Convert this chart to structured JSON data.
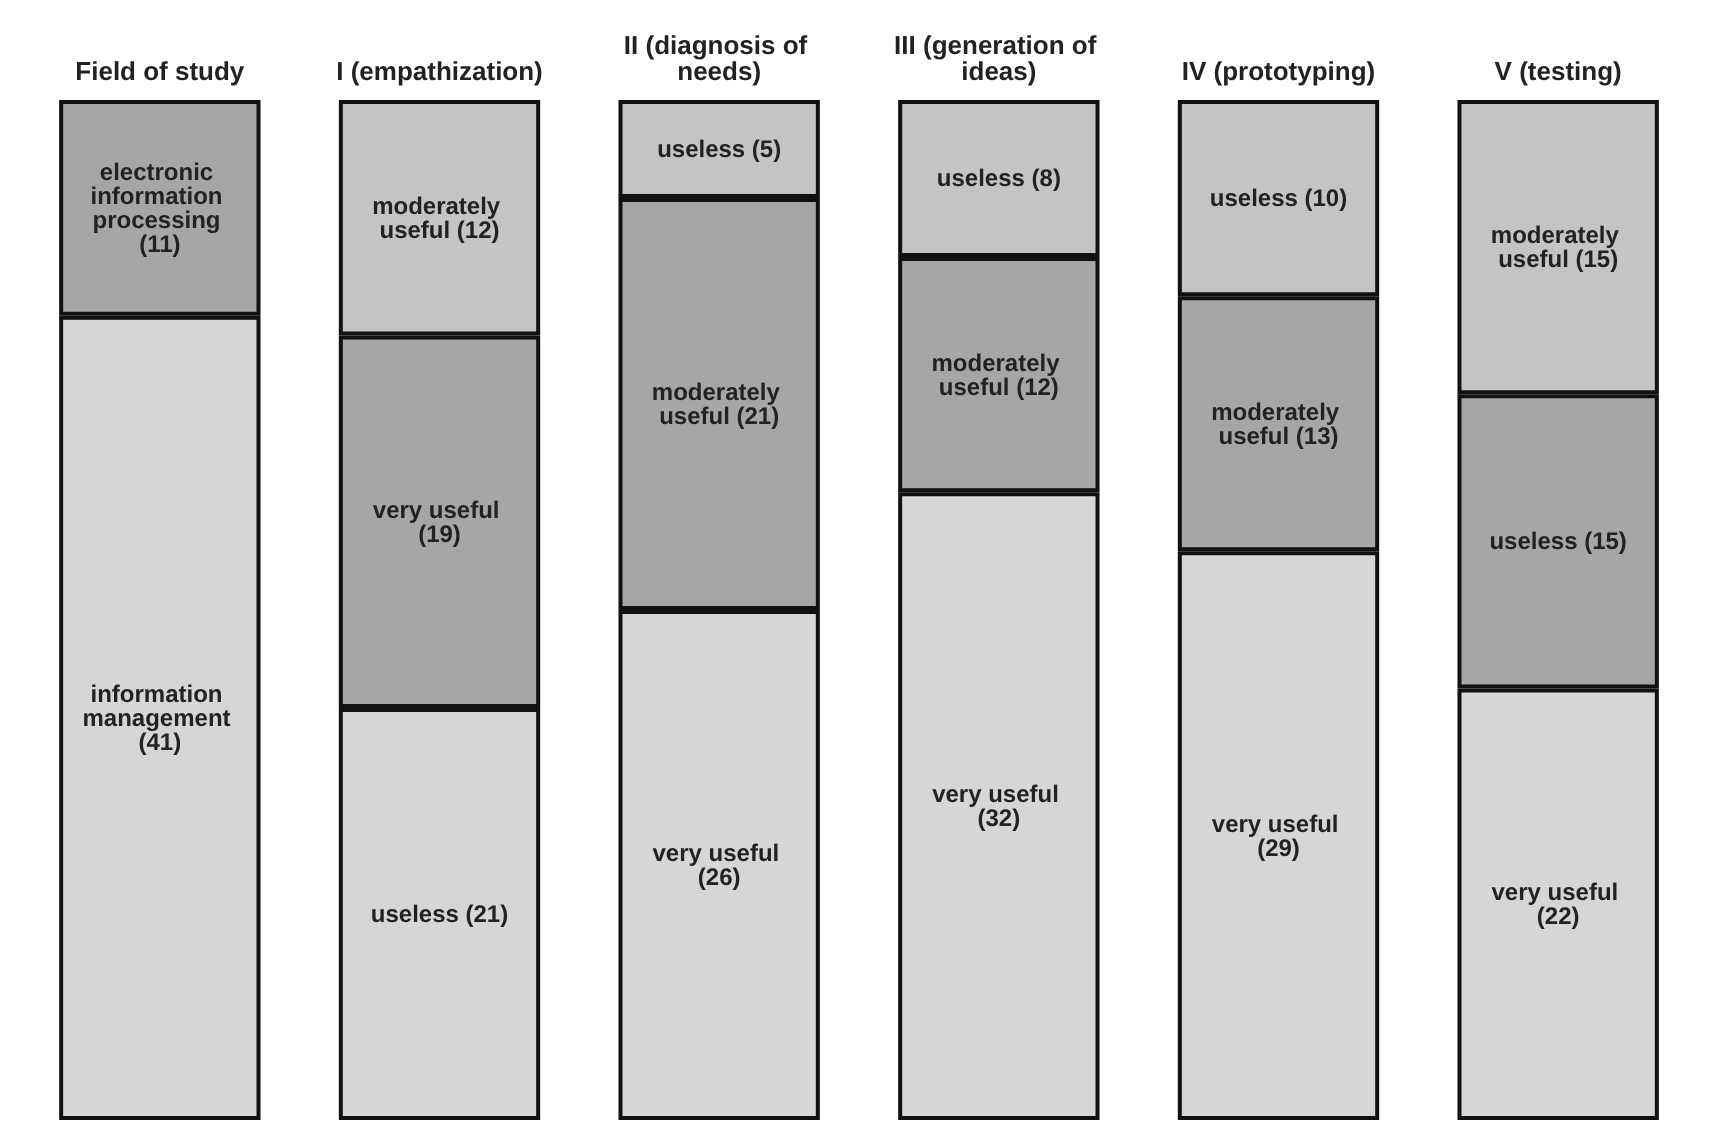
{
  "chart_data": {
    "type": "bar",
    "stacked": true,
    "categories": [
      "Field of study",
      "I (empathization)",
      "II (diagnosis of needs)",
      "III (generation of ideas)",
      "IV (prototyping)",
      "V (testing)"
    ],
    "series": [
      {
        "color": "#d6d6d6",
        "values": [
          41,
          21,
          26,
          32,
          29,
          22
        ],
        "value_labels": [
          "information management (41)",
          "useless (21)",
          "very useful (26)",
          "very useful (32)",
          "very useful (29)",
          "very useful (22)"
        ]
      },
      {
        "color": "#a6a6a6",
        "values": [
          11,
          19,
          21,
          12,
          13,
          15
        ],
        "value_labels": [
          "electronic information processing (11)",
          "very useful (19)",
          "moderately useful (21)",
          "moderately useful (12)",
          "moderately useful (13)",
          "useless (15)"
        ]
      },
      {
        "color": "#c4c4c4",
        "values": [
          null,
          12,
          5,
          8,
          10,
          15
        ],
        "value_labels": [
          null,
          "moderately useful (12)",
          "useless (5)",
          "useless (8)",
          "useless (10)",
          "moderately useful (15)"
        ]
      }
    ],
    "grid": false
  }
}
